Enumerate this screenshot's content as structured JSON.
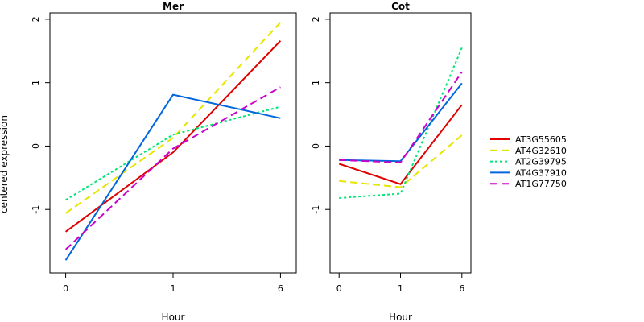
{
  "chart_data": {
    "type": "line",
    "ylabel": "centered expression",
    "x_categories": [
      "0",
      "1",
      "6"
    ],
    "xlabel": "Hour",
    "yticks": [
      "-1",
      "0",
      "1",
      "2"
    ],
    "ylim": [
      -2.0,
      2.1
    ],
    "legend_position": "right",
    "series_styles": [
      {
        "name": "AT3G55605",
        "color": "#e00000",
        "dash": "solid"
      },
      {
        "name": "AT4G32610",
        "color": "#e6e600",
        "dash": "long-dash"
      },
      {
        "name": "AT2G39795",
        "color": "#00e676",
        "dash": "dotted"
      },
      {
        "name": "AT4G37910",
        "color": "#0066dd",
        "dash": "solid"
      },
      {
        "name": "AT1G77750",
        "color": "#cc00cc",
        "dash": "long-dash"
      }
    ],
    "panels": [
      {
        "title": "Mer",
        "series": [
          {
            "name": "AT3G55605",
            "values": [
              -1.35,
              -0.1,
              1.66
            ]
          },
          {
            "name": "AT4G32610",
            "values": [
              -1.06,
              0.13,
              1.95
            ]
          },
          {
            "name": "AT2G39795",
            "values": [
              -0.85,
              0.18,
              0.62
            ]
          },
          {
            "name": "AT4G37910",
            "values": [
              -1.8,
              0.81,
              0.44
            ]
          },
          {
            "name": "AT1G77750",
            "values": [
              -1.63,
              -0.04,
              0.93
            ]
          }
        ]
      },
      {
        "title": "Cot",
        "series": [
          {
            "name": "AT3G55605",
            "values": [
              -0.28,
              -0.6,
              0.65
            ]
          },
          {
            "name": "AT4G32610",
            "values": [
              -0.55,
              -0.65,
              0.17
            ]
          },
          {
            "name": "AT2G39795",
            "values": [
              -0.82,
              -0.75,
              1.55
            ]
          },
          {
            "name": "AT4G37910",
            "values": [
              -0.22,
              -0.24,
              0.99
            ]
          },
          {
            "name": "AT1G77750",
            "values": [
              -0.22,
              -0.26,
              1.17
            ]
          }
        ]
      }
    ]
  }
}
